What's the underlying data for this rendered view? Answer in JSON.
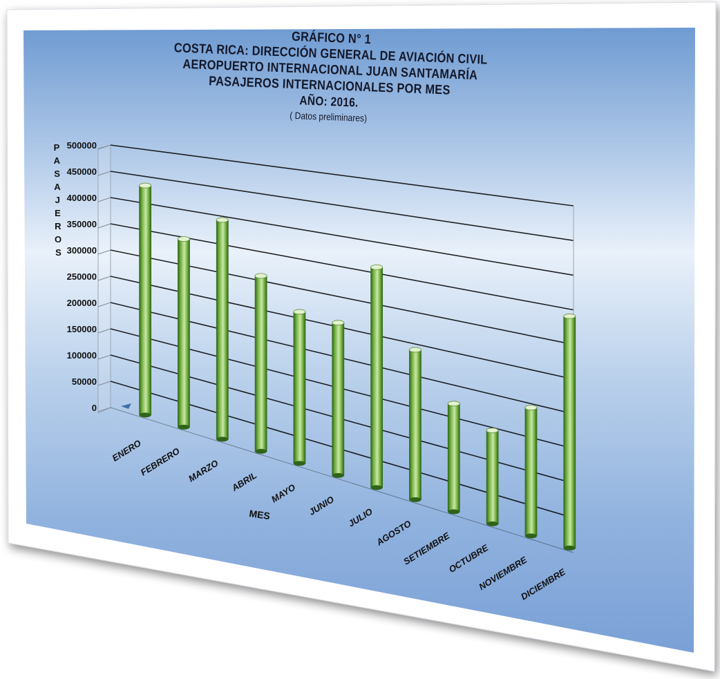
{
  "title_lines": [
    "GRÁFICO N° 1",
    "COSTA RICA: DIRECCIÓN GENERAL DE AVIACIÓN CIVIL",
    "AEROPUERTO INTERNACIONAL JUAN SANTAMARÍA",
    "PASAJEROS INTERNACIONALES POR MES",
    "AÑO: 2016."
  ],
  "subtitle": "( Datos preliminares)",
  "colors": {
    "bar": "#6fae3f",
    "bar_highlight": "#cbe7a6",
    "bar_shadow": "#2f6418",
    "background_top": "#6f9bd2",
    "background_mid": "#e9f1fa",
    "gridline": "#000000",
    "frame": "#ffffff"
  },
  "chart_data": {
    "type": "bar",
    "categories": [
      "ENERO",
      "FEBRERO",
      "MARZO",
      "ABRIL",
      "MAYO",
      "JUNIO",
      "JULIO",
      "AGOSTO",
      "SETIEMBRE",
      "OCTUBRE",
      "NOVIEMBRE",
      "DICIEMBRE"
    ],
    "series": [
      {
        "values": [
          0,
          0,
          0,
          0,
          0,
          0,
          0,
          0,
          0,
          0,
          0,
          0
        ]
      },
      {
        "values": [
          432000,
          345000,
          392000,
          306000,
          258000,
          254000,
          358000,
          238000,
          168000,
          142000,
          191000,
          338000
        ]
      }
    ],
    "y_ticks": [
      "0",
      "50000",
      "100000",
      "150000",
      "200000",
      "250000",
      "300000",
      "350000",
      "400000",
      "450000",
      "500000"
    ],
    "ylim": [
      0,
      500000
    ],
    "xlabel": "MES",
    "ylabel": "PASAJEROS",
    "grid": true,
    "legend": "none"
  }
}
